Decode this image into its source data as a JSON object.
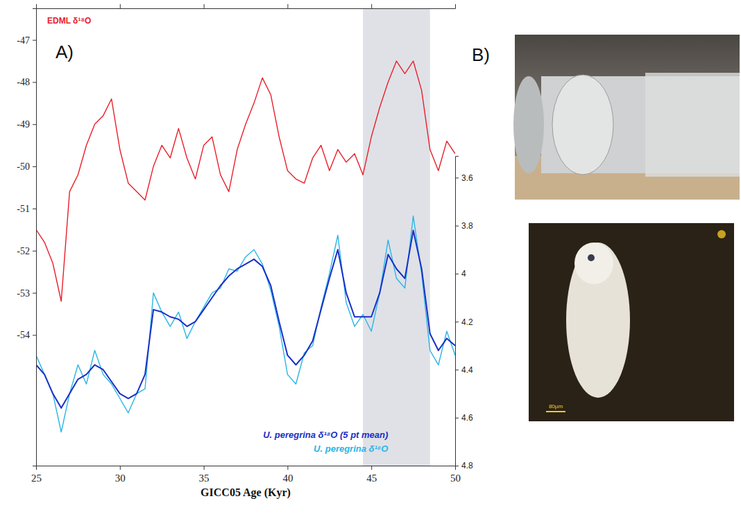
{
  "chart_data": {
    "type": "line",
    "x_label": "GICC05 Age (Kyr)",
    "xlim": [
      25,
      50
    ],
    "xticks": [
      25,
      30,
      35,
      40,
      45,
      50
    ],
    "ylim": [
      -57.1,
      -46.25
    ],
    "yticks": [
      -47,
      -48,
      -49,
      -50,
      -51,
      -52,
      -53,
      -54
    ],
    "y2lim": [
      4.8,
      3.51
    ],
    "y2ticks": [
      3.6,
      3.8,
      4,
      4.2,
      4.4,
      4.6,
      4.8
    ],
    "legend": "lower right",
    "shaded_x": [
      44.5,
      48.5
    ],
    "x": [
      25,
      25.5,
      26,
      26.5,
      27,
      27.5,
      28,
      28.5,
      29,
      29.5,
      30,
      30.5,
      31,
      31.5,
      32,
      32.5,
      33,
      33.5,
      34,
      34.5,
      35,
      35.5,
      36,
      36.5,
      37,
      37.5,
      38,
      38.5,
      39,
      39.5,
      40,
      40.5,
      41,
      41.5,
      42,
      42.5,
      43,
      43.5,
      44,
      44.5,
      45,
      45.5,
      46,
      46.5,
      47,
      47.5,
      48,
      48.5,
      49,
      49.5,
      50
    ],
    "series": [
      {
        "name": "EDML δ¹⁸O",
        "color": "#e8202a",
        "values": [
          -51.5,
          -51.8,
          -52.3,
          -53.2,
          -50.6,
          -50.2,
          -49.5,
          -49.0,
          -48.8,
          -48.4,
          -49.6,
          -50.4,
          -50.6,
          -50.8,
          -50.0,
          -49.5,
          -49.8,
          -49.1,
          -49.8,
          -50.3,
          -49.5,
          -49.3,
          -50.2,
          -50.6,
          -49.6,
          -49.0,
          -48.5,
          -47.9,
          -48.3,
          -49.3,
          -50.1,
          -50.3,
          -50.4,
          -49.8,
          -49.5,
          -50.1,
          -49.6,
          -49.9,
          -49.7,
          -50.2,
          -49.3,
          -48.6,
          -48.0,
          -47.5,
          -47.8,
          -47.5,
          -48.2,
          -49.6,
          -50.1,
          -49.4,
          -49.7
        ]
      },
      {
        "name": "U. peregrina δ¹⁸O",
        "color": "#29b5e8",
        "axis": "y2",
        "values": [
          4.34,
          4.42,
          4.5,
          4.66,
          4.5,
          4.38,
          4.46,
          4.32,
          4.42,
          4.46,
          4.52,
          4.58,
          4.5,
          4.48,
          4.08,
          4.16,
          4.22,
          4.16,
          4.27,
          4.2,
          4.14,
          4.08,
          4.06,
          3.98,
          3.99,
          3.93,
          3.9,
          3.96,
          4.07,
          4.22,
          4.42,
          4.46,
          4.33,
          4.3,
          4.14,
          4.0,
          3.84,
          4.12,
          4.22,
          4.17,
          4.24,
          4.08,
          3.86,
          4.02,
          4.06,
          3.76,
          4.0,
          4.32,
          4.38,
          4.24,
          4.34
        ]
      },
      {
        "name": "U. peregrina δ¹⁸O (5 pt mean)",
        "color": "#1a2fc8",
        "axis": "y2",
        "values": [
          4.38,
          4.42,
          4.5,
          4.56,
          4.5,
          4.44,
          4.42,
          4.38,
          4.4,
          4.45,
          4.5,
          4.52,
          4.5,
          4.42,
          4.15,
          4.16,
          4.18,
          4.19,
          4.22,
          4.2,
          4.15,
          4.1,
          4.05,
          4.01,
          3.98,
          3.96,
          3.94,
          3.97,
          4.05,
          4.2,
          4.34,
          4.38,
          4.34,
          4.28,
          4.15,
          4.02,
          3.9,
          4.08,
          4.18,
          4.18,
          4.18,
          4.08,
          3.92,
          3.98,
          4.02,
          3.82,
          3.98,
          4.25,
          4.32,
          4.27,
          4.3
        ]
      }
    ]
  },
  "panel_labels": [
    "A)",
    "B)"
  ],
  "scale_bar_label": "80µm"
}
